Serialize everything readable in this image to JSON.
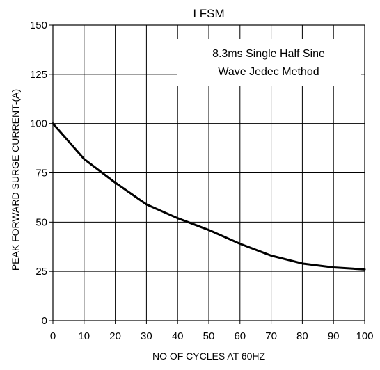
{
  "chart_data": {
    "type": "line",
    "title": "I FSM",
    "xlabel": "NO OF CYCLES AT 60HZ",
    "ylabel": "PEAK FORWARD SURGE CURRENT-(A)",
    "xlim": [
      0,
      100
    ],
    "ylim": [
      0,
      150
    ],
    "xticks": [
      0,
      10,
      20,
      30,
      40,
      50,
      60,
      70,
      80,
      90,
      100
    ],
    "yticks": [
      0,
      25,
      50,
      75,
      100,
      125,
      150
    ],
    "xtick_labels": [
      "0",
      "10",
      "20",
      "30",
      "40",
      "50",
      "60",
      "70",
      "80",
      "90",
      "100"
    ],
    "ytick_labels": [
      "0",
      "25",
      "50",
      "75",
      "100",
      "125",
      "150"
    ],
    "grid": true,
    "annotation": [
      "8.3ms Single Half Sine",
      "Wave Jedec Method"
    ],
    "series": [
      {
        "x": [
          0,
          10,
          20,
          30,
          40,
          50,
          60,
          70,
          80,
          90,
          100
        ],
        "y": [
          100,
          82,
          70,
          59,
          52,
          46,
          39,
          33,
          29,
          27,
          26
        ]
      }
    ]
  }
}
